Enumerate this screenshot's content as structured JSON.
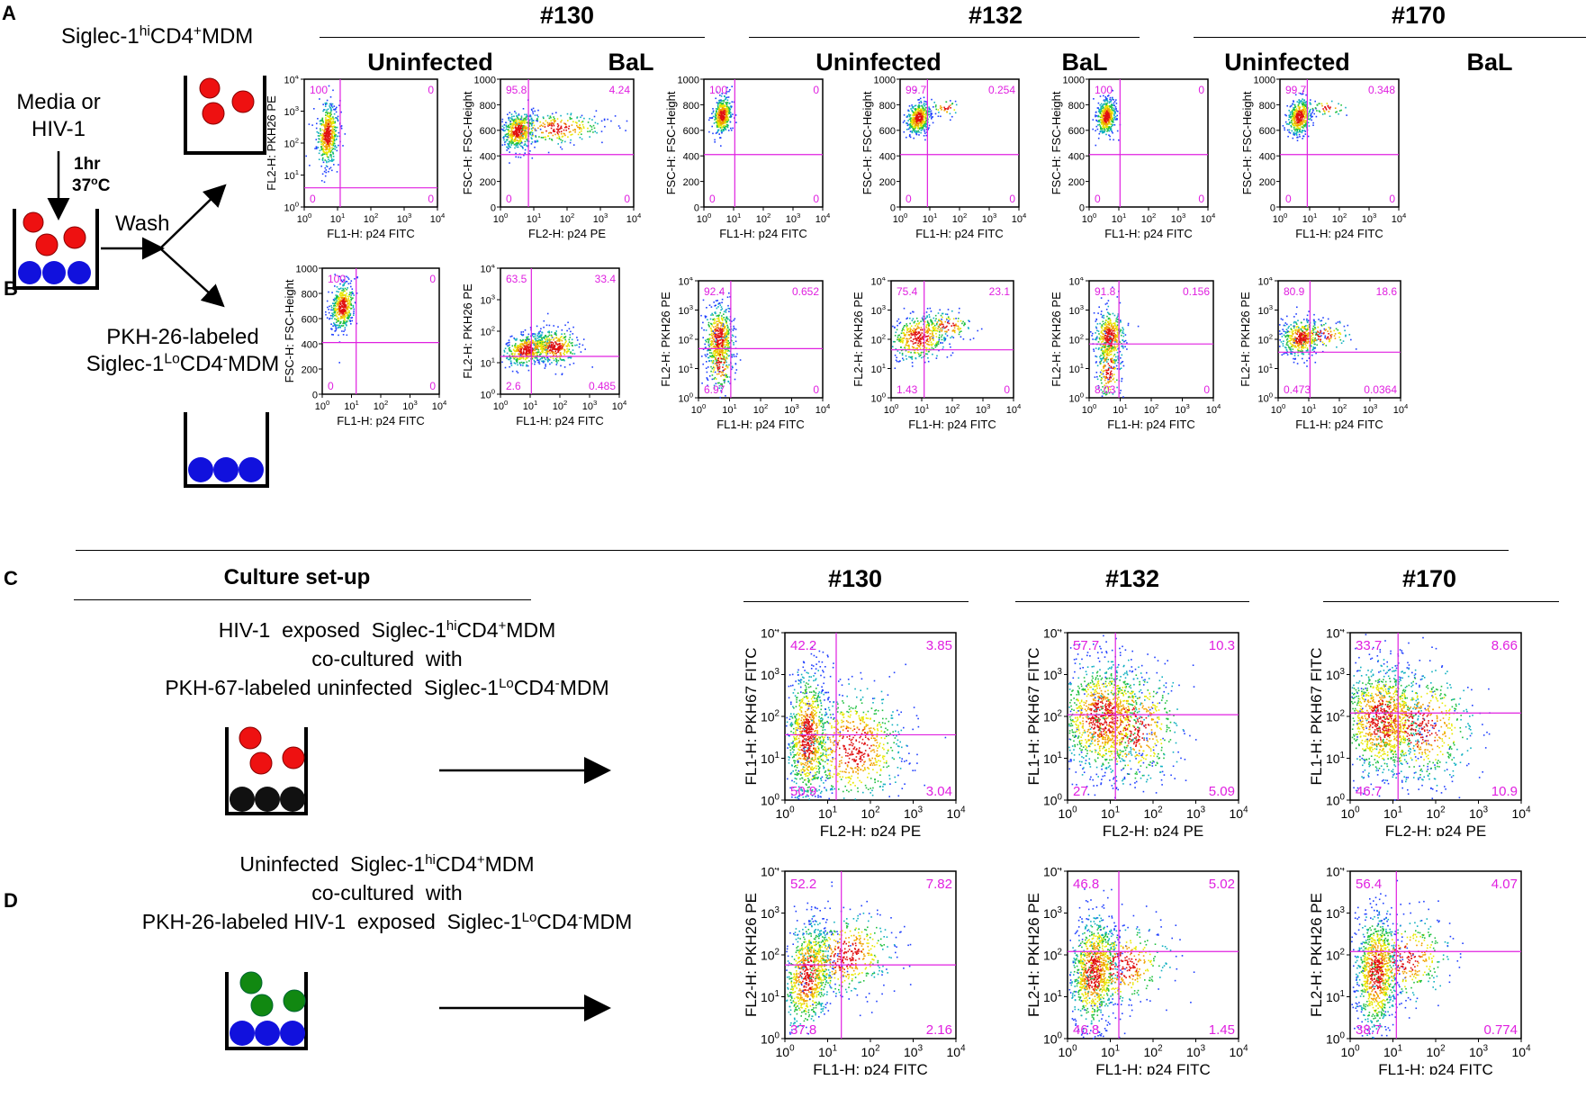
{
  "panel_labels": [
    "A",
    "B",
    "C",
    "D"
  ],
  "donors": [
    "#130",
    "#132",
    "#170"
  ],
  "conditions": [
    "Uninfected",
    "BaL"
  ],
  "schematic_ab": {
    "top_label_pre": "Siglec-1",
    "top_label_sup1": "hi",
    "top_label_mid": "CD4",
    "top_label_sup2": "+",
    "top_label_post": "MDM",
    "media_line1": "Media or",
    "media_line2": "HIV-1",
    "time": "1hr",
    "temp_pre": "37",
    "temp_sup": "o",
    "temp_post": "C",
    "wash": "Wash",
    "bottom_label_line1": "PKH-26-labeled",
    "bottom_label_pre": "Siglec-1",
    "bottom_label_sup1": "Lo",
    "bottom_label_mid": "CD4",
    "bottom_label_sup2": "-",
    "bottom_label_post": "MDM"
  },
  "culture": {
    "title": "Culture set-up",
    "c_line1_pre": "HIV-1  exposed  Siglec-1",
    "c_line1_sup1": "hi",
    "c_line1_mid": "CD4",
    "c_line1_sup2": "+",
    "c_line1_post": "MDM",
    "c_line2": "co-cultured  with",
    "c_line3_pre": "PKH-67-labeled uninfected  Siglec-1",
    "c_line3_sup1": "Lo",
    "c_line3_mid": "CD4",
    "c_line3_sup2": "-",
    "c_line3_post": "MDM",
    "d_line1_pre": "Uninfected  Siglec-1",
    "d_line1_sup1": "hi",
    "d_line1_mid": "CD4",
    "d_line1_sup2": "+",
    "d_line1_post": "MDM",
    "d_line2": "co-cultured  with",
    "d_line3_pre": "PKH-26-labeled HIV-1  exposed  Siglec-1",
    "d_line3_sup1": "Lo",
    "d_line3_mid": "CD4",
    "d_line3_sup2": "-",
    "d_line3_post": "MDM"
  },
  "colors": {
    "gate": "#e020e0",
    "quadrant_text": "#e020e0",
    "red_cell": "#ee1111",
    "blue_cell": "#1111dd",
    "black_cell": "#111111",
    "green_cell": "#118811"
  },
  "chart_data": [
    {
      "id": "A-130-uninf",
      "type": "scatter",
      "donor": "#130",
      "condition": "Uninfected",
      "xlabel": "FL1-H: p24 FITC",
      "ylabel": "FL2-H: PKH26 PE",
      "xscale": "log",
      "yscale": "log",
      "xlim": [
        1,
        10000
      ],
      "ylim": [
        1,
        10000
      ],
      "quadrants": {
        "ul": "100",
        "ur": "0",
        "ll": "0",
        "lr": "0"
      }
    },
    {
      "id": "A-130-bal",
      "type": "scatter",
      "donor": "#130",
      "condition": "BaL",
      "xlabel": "FL2-H: p24 PE",
      "ylabel": "FSC-H: FSC-Height",
      "xscale": "log",
      "yscale": "linear",
      "xlim": [
        1,
        10000
      ],
      "ylim": [
        0,
        1000
      ],
      "quadrants": {
        "ul": "95.8",
        "ur": "4.24",
        "ll": "0",
        "lr": "0"
      }
    },
    {
      "id": "A-132-uninf",
      "type": "scatter",
      "donor": "#132",
      "condition": "Uninfected",
      "xlabel": "FL1-H: p24 FITC",
      "ylabel": "FSC-H: FSC-Height",
      "xscale": "log",
      "yscale": "linear",
      "xlim": [
        1,
        10000
      ],
      "ylim": [
        0,
        1000
      ],
      "quadrants": {
        "ul": "100",
        "ur": "0",
        "ll": "0",
        "lr": "0"
      }
    },
    {
      "id": "A-132-bal",
      "type": "scatter",
      "donor": "#132",
      "condition": "BaL",
      "xlabel": "FL1-H: p24 FITC",
      "ylabel": "FSC-H: FSC-Height",
      "xscale": "log",
      "yscale": "linear",
      "xlim": [
        1,
        10000
      ],
      "ylim": [
        0,
        1000
      ],
      "quadrants": {
        "ul": "99.7",
        "ur": "0.254",
        "ll": "0",
        "lr": "0"
      }
    },
    {
      "id": "A-170-uninf",
      "type": "scatter",
      "donor": "#170",
      "condition": "Uninfected",
      "xlabel": "FL1-H: p24 FITC",
      "ylabel": "FSC-H: FSC-Height",
      "xscale": "log",
      "yscale": "linear",
      "xlim": [
        1,
        10000
      ],
      "ylim": [
        0,
        1000
      ],
      "quadrants": {
        "ul": "100",
        "ur": "0",
        "ll": "0",
        "lr": "0"
      }
    },
    {
      "id": "A-170-bal",
      "type": "scatter",
      "donor": "#170",
      "condition": "BaL",
      "xlabel": "FL1-H: p24 FITC",
      "ylabel": "FSC-H: FSC-Height",
      "xscale": "log",
      "yscale": "linear",
      "xlim": [
        1,
        10000
      ],
      "ylim": [
        0,
        1000
      ],
      "quadrants": {
        "ul": "99.7",
        "ur": "0.348",
        "ll": "0",
        "lr": "0"
      }
    },
    {
      "id": "B-130-uninf",
      "type": "scatter",
      "donor": "#130",
      "condition": "Uninfected",
      "xlabel": "FL1-H: p24 FITC",
      "ylabel": "FSC-H: FSC-Height",
      "xscale": "log",
      "yscale": "linear",
      "xlim": [
        1,
        10000
      ],
      "ylim": [
        0,
        1000
      ],
      "quadrants": {
        "ul": "100",
        "ur": "0",
        "ll": "0",
        "lr": "0"
      }
    },
    {
      "id": "B-130-bal",
      "type": "scatter",
      "donor": "#130",
      "condition": "BaL",
      "xlabel": "FL1-H: p24 FITC",
      "ylabel": "FL2-H: PKH26 PE",
      "xscale": "log",
      "yscale": "log",
      "xlim": [
        1,
        10000
      ],
      "ylim": [
        1,
        10000
      ],
      "quadrants": {
        "ul": "63.5",
        "ur": "33.4",
        "ll": "2.6",
        "lr": "0.485"
      }
    },
    {
      "id": "B-132-uninf",
      "type": "scatter",
      "donor": "#132",
      "condition": "Uninfected",
      "xlabel": "FL1-H: p24 FITC",
      "ylabel": "FL2-H: PKH26 PE",
      "xscale": "log",
      "yscale": "log",
      "xlim": [
        1,
        10000
      ],
      "ylim": [
        1,
        10000
      ],
      "quadrants": {
        "ul": "92.4",
        "ur": "0.652",
        "ll": "6.97",
        "lr": "0"
      }
    },
    {
      "id": "B-132-bal",
      "type": "scatter",
      "donor": "#132",
      "condition": "BaL",
      "xlabel": "FL1-H: p24 FITC",
      "ylabel": "FL2-H: PKH26 PE",
      "xscale": "log",
      "yscale": "log",
      "xlim": [
        1,
        10000
      ],
      "ylim": [
        1,
        10000
      ],
      "quadrants": {
        "ul": "75.4",
        "ur": "23.1",
        "ll": "1.43",
        "lr": "0"
      }
    },
    {
      "id": "B-170-uninf",
      "type": "scatter",
      "donor": "#170",
      "condition": "Uninfected",
      "xlabel": "FL1-H: p24 FITC",
      "ylabel": "FL2-H: PKH26 PE",
      "xscale": "log",
      "yscale": "log",
      "xlim": [
        1,
        10000
      ],
      "ylim": [
        1,
        10000
      ],
      "quadrants": {
        "ul": "91.8",
        "ur": "0.156",
        "ll": "8.03",
        "lr": "0"
      }
    },
    {
      "id": "B-170-bal",
      "type": "scatter",
      "donor": "#170",
      "condition": "BaL",
      "xlabel": "FL1-H: p24 FITC",
      "ylabel": "FL2-H: PKH26 PE",
      "xscale": "log",
      "yscale": "log",
      "xlim": [
        1,
        10000
      ],
      "ylim": [
        1,
        10000
      ],
      "quadrants": {
        "ul": "80.9",
        "ur": "18.6",
        "ll": "0.473",
        "lr": "0.0364"
      }
    },
    {
      "id": "C-130",
      "type": "scatter",
      "donor": "#130",
      "xlabel": "FL2-H: p24 PE",
      "ylabel": "FL1-H: PKH67 FITC",
      "xscale": "log",
      "yscale": "log",
      "xlim": [
        1,
        10000
      ],
      "ylim": [
        1,
        10000
      ],
      "quadrants": {
        "ul": "42.2",
        "ur": "3.85",
        "ll": "50.9",
        "lr": "3.04"
      }
    },
    {
      "id": "C-132",
      "type": "scatter",
      "donor": "#132",
      "xlabel": "FL2-H: p24 PE",
      "ylabel": "FL1-H: PKH67 FITC",
      "xscale": "log",
      "yscale": "log",
      "xlim": [
        1,
        10000
      ],
      "ylim": [
        1,
        10000
      ],
      "quadrants": {
        "ul": "57.7",
        "ur": "10.3",
        "ll": "27",
        "lr": "5.09"
      }
    },
    {
      "id": "C-170",
      "type": "scatter",
      "donor": "#170",
      "xlabel": "FL2-H: p24 PE",
      "ylabel": "FL1-H: PKH67 FITC",
      "xscale": "log",
      "yscale": "log",
      "xlim": [
        1,
        10000
      ],
      "ylim": [
        1,
        10000
      ],
      "quadrants": {
        "ul": "33.7",
        "ur": "8.66",
        "ll": "46.7",
        "lr": "10.9"
      }
    },
    {
      "id": "D-130",
      "type": "scatter",
      "donor": "#130",
      "xlabel": "FL1-H: p24 FITC",
      "ylabel": "FL2-H: PKH26 PE",
      "xscale": "log",
      "yscale": "log",
      "xlim": [
        1,
        10000
      ],
      "ylim": [
        1,
        10000
      ],
      "quadrants": {
        "ul": "52.2",
        "ur": "7.82",
        "ll": "37.8",
        "lr": "2.16"
      }
    },
    {
      "id": "D-132",
      "type": "scatter",
      "donor": "#132",
      "xlabel": "FL1-H: p24 FITC",
      "ylabel": "FL2-H: PKH26 PE",
      "xscale": "log",
      "yscale": "log",
      "xlim": [
        1,
        10000
      ],
      "ylim": [
        1,
        10000
      ],
      "quadrants": {
        "ul": "46.8",
        "ur": "5.02",
        "ll": "46.8",
        "lr": "1.45"
      }
    },
    {
      "id": "D-170",
      "type": "scatter",
      "donor": "#170",
      "xlabel": "FL1-H: p24 FITC",
      "ylabel": "FL2-H: PKH26 PE",
      "xscale": "log",
      "yscale": "log",
      "xlim": [
        1,
        10000
      ],
      "ylim": [
        1,
        10000
      ],
      "quadrants": {
        "ul": "56.4",
        "ur": "4.07",
        "ll": "38.7",
        "lr": "0.774"
      }
    }
  ]
}
